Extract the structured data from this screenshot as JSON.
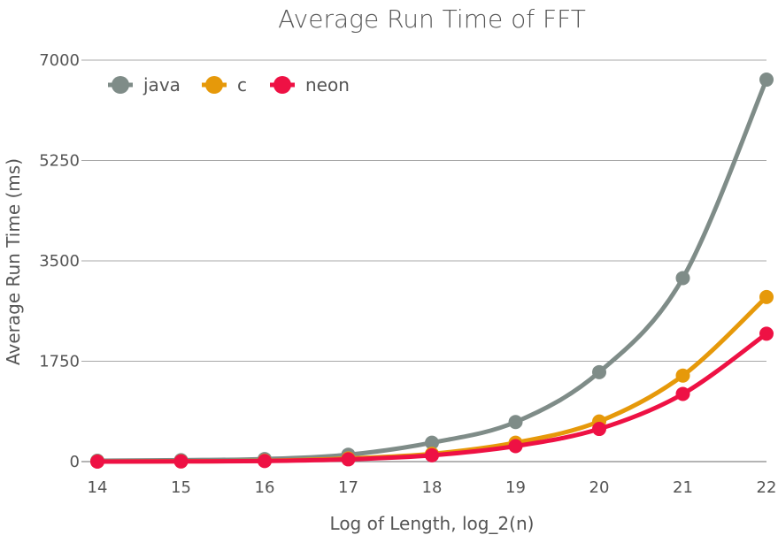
{
  "chart_data": {
    "type": "line",
    "title": "Average Run Time of FFT",
    "xlabel": "Log of Length, log_2(n)",
    "ylabel": "Average Run Time (ms)",
    "x": [
      14,
      15,
      16,
      17,
      18,
      19,
      20,
      21,
      22
    ],
    "x_tick_labels": [
      "14",
      "15",
      "16",
      "17",
      "18",
      "19",
      "20",
      "21",
      "22"
    ],
    "ylim": [
      0,
      7000
    ],
    "y_ticks": [
      0,
      1750,
      3500,
      5250,
      7000
    ],
    "y_tick_labels": [
      "0",
      "1750",
      "3500",
      "5250",
      "7000"
    ],
    "grid": "horizontal",
    "legend_position": "top-left",
    "series": [
      {
        "name": "java",
        "color": "#7f8c88",
        "values": [
          15,
          25,
          45,
          120,
          330,
          690,
          1560,
          3200,
          6660
        ]
      },
      {
        "name": "c",
        "color": "#e6990a",
        "values": [
          2,
          5,
          15,
          55,
          135,
          330,
          700,
          1500,
          2870
        ]
      },
      {
        "name": "neon",
        "color": "#ee1144",
        "values": [
          0,
          3,
          10,
          40,
          110,
          270,
          570,
          1180,
          2230
        ]
      }
    ]
  }
}
